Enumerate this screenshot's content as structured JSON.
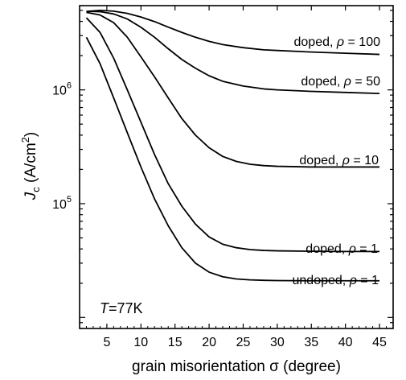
{
  "chart_data": {
    "type": "line",
    "xlabel": "grain misorientation σ (degree)",
    "ylabel": "J_c (A/cm²)",
    "ylabel_parts": {
      "main": "J",
      "sub": "c",
      "unit_open": " (A/cm",
      "sup": "2",
      "unit_close": ")"
    },
    "xlim": [
      1,
      47
    ],
    "ylim": [
      8000,
      5500000
    ],
    "y_scale": "log",
    "x_ticks": [
      5,
      10,
      15,
      20,
      25,
      30,
      35,
      40,
      45
    ],
    "x_tick_labels": [
      "5",
      "10",
      "15",
      "20",
      "25",
      "30",
      "35",
      "40",
      "45"
    ],
    "y_major_ticks": [
      100000,
      1000000
    ],
    "y_tick_labels": [
      {
        "base": "10",
        "exp": "5"
      },
      {
        "base": "10",
        "exp": "6"
      }
    ],
    "annotation": {
      "italic": "T",
      "rest": "=77K"
    },
    "grid": false,
    "series": [
      {
        "name": "doped, ρ = 100",
        "label_parts": {
          "pre": "doped, ",
          "rho": "ρ",
          "post": " = 100"
        },
        "x": [
          2,
          4,
          6,
          8,
          10,
          12,
          14,
          16,
          18,
          20,
          22,
          25,
          28,
          30,
          35,
          40,
          45
        ],
        "y": [
          4900000,
          5000000,
          4920000,
          4700000,
          4370000,
          3980000,
          3560000,
          3200000,
          2900000,
          2670000,
          2500000,
          2350000,
          2250000,
          2220000,
          2150000,
          2100000,
          2050000
        ]
      },
      {
        "name": "doped, ρ = 50",
        "label_parts": {
          "pre": "doped, ",
          "rho": "ρ",
          "post": " = 50"
        },
        "x": [
          2,
          4,
          6,
          8,
          10,
          12,
          14,
          16,
          18,
          20,
          22,
          25,
          28,
          30,
          35,
          40,
          45
        ],
        "y": [
          4900000,
          4870000,
          4650000,
          4200000,
          3550000,
          2900000,
          2300000,
          1850000,
          1550000,
          1330000,
          1190000,
          1080000,
          1020000,
          1000000,
          970000,
          950000,
          930000
        ]
      },
      {
        "name": "doped, ρ = 10",
        "label_parts": {
          "pre": "doped, ",
          "rho": "ρ",
          "post": " = 10"
        },
        "x": [
          2,
          4,
          6,
          8,
          10,
          12,
          14,
          16,
          18,
          20,
          22,
          24,
          26,
          28,
          30,
          35,
          40,
          45
        ],
        "y": [
          4800000,
          4550000,
          3900000,
          2900000,
          1950000,
          1300000,
          850000,
          560000,
          400000,
          310000,
          260000,
          235000,
          222000,
          216000,
          213000,
          210000,
          210000,
          210000
        ]
      },
      {
        "name": "doped, ρ = 1",
        "label_parts": {
          "pre": "doped, ",
          "rho": "ρ",
          "post": " = 1"
        },
        "x": [
          2,
          4,
          6,
          8,
          10,
          12,
          14,
          16,
          18,
          20,
          22,
          24,
          26,
          28,
          30,
          35,
          40,
          45
        ],
        "y": [
          4300000,
          3200000,
          1900000,
          1000000,
          520000,
          270000,
          150000,
          95000,
          66000,
          51000,
          44000,
          41000,
          39500,
          38800,
          38500,
          38200,
          38000,
          38000
        ]
      },
      {
        "name": "undoped, ρ = 1",
        "label_parts": {
          "pre": "undoped, ",
          "rho": "ρ",
          "post": " = 1"
        },
        "x": [
          2,
          4,
          6,
          8,
          10,
          12,
          14,
          16,
          18,
          20,
          22,
          24,
          26,
          28,
          30,
          35,
          40,
          45
        ],
        "y": [
          2900000,
          1700000,
          850000,
          420000,
          210000,
          110000,
          64000,
          41000,
          30000,
          25000,
          22800,
          21800,
          21400,
          21200,
          21100,
          21000,
          21000,
          21000
        ]
      }
    ]
  }
}
